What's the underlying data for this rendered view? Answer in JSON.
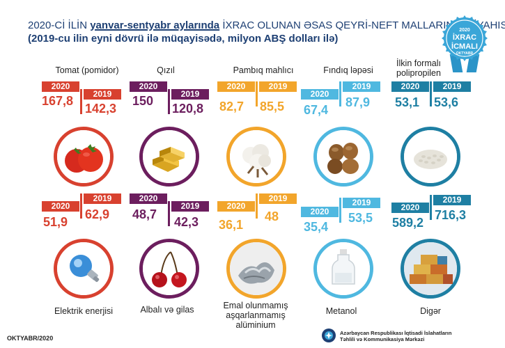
{
  "header": {
    "title_pre": "2020-Cİ İLİN ",
    "title_bold": "yanvar-sentyabr aylarında",
    "title_post": " İXRAC OLUNAN ƏSAS QEYRİ-NEFT MALLARININ SİYAHISI",
    "subtitle": "(2019-cu ilin eyni dövrü ilə müqayisədə, milyon ABŞ dolları ilə)"
  },
  "badge": {
    "year": "2020",
    "line1": "İXRAC",
    "line2": "İCMALI",
    "sub": "OKTYABR"
  },
  "years": {
    "current": "2020",
    "previous": "2019"
  },
  "colors": {
    "red": "#d8412f",
    "purple": "#6c1e5e",
    "orange": "#f2a52b",
    "lightblue": "#4fb8e0",
    "teal": "#1e7fa3",
    "navy": "#1d3f73"
  },
  "row1": [
    {
      "label": "Tomat (pomidor)",
      "v2020": "167,8",
      "v2019": "142,3",
      "icon": "tomato-icon"
    },
    {
      "label": "Qızıl",
      "v2020": "150",
      "v2019": "120,8",
      "icon": "gold-icon"
    },
    {
      "label": "Pambıq mahlıcı",
      "v2020": "82,7",
      "v2019": "85,5",
      "icon": "cotton-icon"
    },
    {
      "label": "Fındıq ləpəsi",
      "v2020": "67,4",
      "v2019": "87,9",
      "icon": "hazelnut-icon"
    },
    {
      "label": "İlkin formalı polipropilen",
      "v2020": "53,1",
      "v2019": "53,6",
      "icon": "polypropylene-icon"
    }
  ],
  "row2": [
    {
      "label": "Elektrik enerjisi",
      "v2020": "51,9",
      "v2019": "62,9",
      "icon": "lightbulb-icon"
    },
    {
      "label": "Albalı və gilas",
      "v2020": "48,7",
      "v2019": "42,3",
      "icon": "cherry-icon"
    },
    {
      "label": "Emal olunmamış aşqarlanmamış alüminium",
      "v2020": "36,1",
      "v2019": "48",
      "icon": "aluminium-icon"
    },
    {
      "label": "Metanol",
      "v2020": "35,4",
      "v2019": "53,5",
      "icon": "bottle-icon"
    },
    {
      "label": "Digər",
      "v2020": "589,2",
      "v2019": "716,3",
      "icon": "containers-icon"
    }
  ],
  "footer": {
    "date": "OKTYABR/2020",
    "org_line1": "Azərbaycan Respublikası İqtisadi İslahatların",
    "org_line2": "Təhlili və Kommunikasiya Mərkəzi"
  }
}
